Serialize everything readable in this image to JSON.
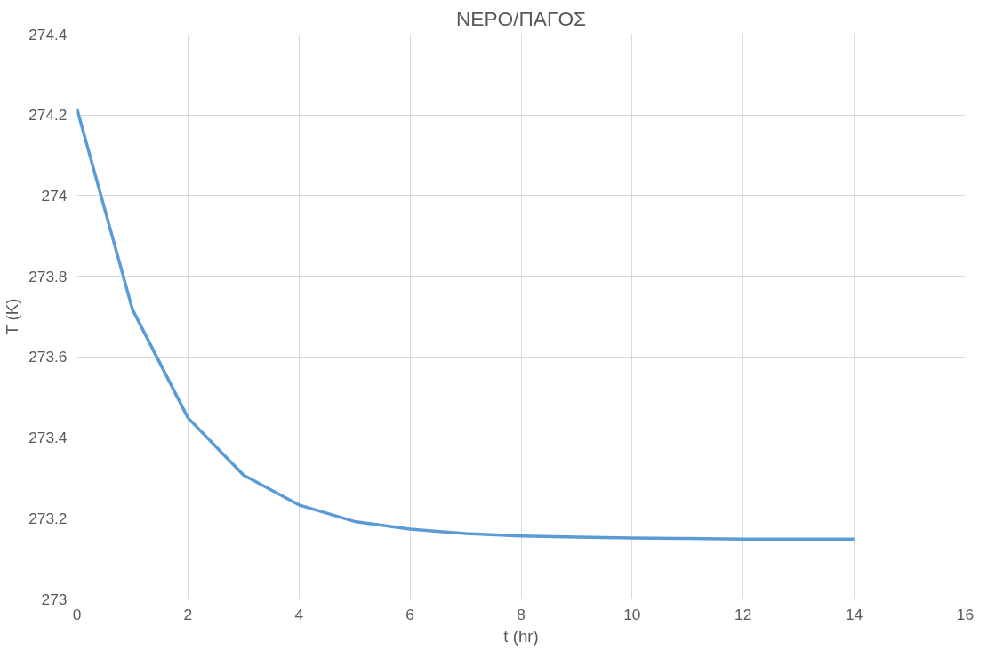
{
  "chart_data": {
    "type": "line",
    "title": "ΝΕΡΟ/ΠΑΓΟΣ",
    "xlabel": "t (hr)",
    "ylabel": "T (K)",
    "x": [
      0,
      1,
      2,
      3,
      4,
      5,
      6,
      7,
      8,
      9,
      10,
      11,
      12,
      13,
      14
    ],
    "series": [
      {
        "color": "#5b9bd5",
        "values": [
          274.216,
          273.718,
          273.449,
          273.307,
          273.233,
          273.192,
          273.173,
          273.162,
          273.156,
          273.153,
          273.151,
          273.15,
          273.148,
          273.148,
          273.148
        ]
      }
    ],
    "xlim": [
      0,
      16
    ],
    "xticks": [
      0,
      2,
      4,
      6,
      8,
      10,
      12,
      14,
      16
    ],
    "ylim": [
      273,
      274.4
    ],
    "yticks": [
      {
        "value": 273,
        "label": "273"
      },
      {
        "value": 273.2,
        "label": "273.2"
      },
      {
        "value": 273.4,
        "label": "273.4"
      },
      {
        "value": 273.6,
        "label": "273.6"
      },
      {
        "value": 273.8,
        "label": "273.8"
      },
      {
        "value": 274,
        "label": "274"
      },
      {
        "value": 274.2,
        "label": "274.2"
      },
      {
        "value": 274.4,
        "label": "274.4"
      }
    ],
    "grid": true,
    "marker": "none",
    "line_style": "solid"
  }
}
